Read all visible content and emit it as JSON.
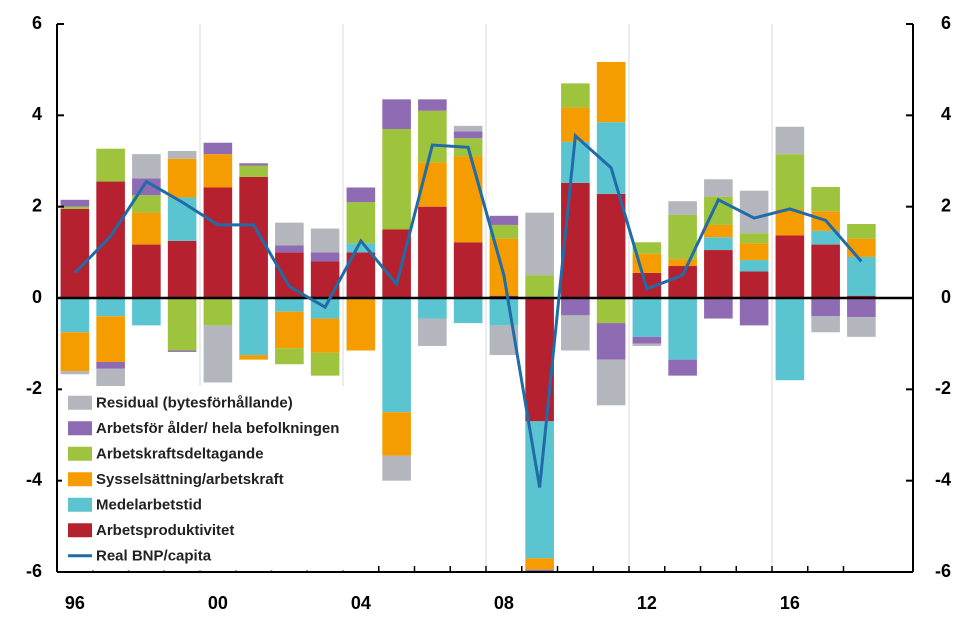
{
  "chart_data": {
    "type": "bar",
    "categories": [
      "96",
      null,
      null,
      null,
      "00",
      null,
      null,
      null,
      "04",
      null,
      null,
      null,
      "08",
      null,
      null,
      null,
      "12",
      null,
      null,
      null,
      "16",
      null,
      null
    ],
    "series": [
      {
        "name": "Arbetsproduktivitet",
        "color": "#b5212e",
        "values": [
          1.95,
          2.55,
          1.17,
          1.25,
          2.42,
          2.65,
          1.0,
          0.8,
          1.0,
          1.5,
          2.0,
          1.22,
          0.05,
          -2.7,
          2.52,
          2.28,
          0.55,
          0.7,
          1.05,
          0.58,
          1.37,
          1.17,
          0.05
        ]
      },
      {
        "name": "Medelarbetstid",
        "color": "#5bc4d1",
        "values": [
          -0.75,
          -0.4,
          -0.6,
          0.95,
          0,
          -1.25,
          -0.3,
          -0.45,
          0.2,
          -2.5,
          -0.45,
          -0.55,
          -0.6,
          -3.0,
          0.9,
          1.57,
          -0.85,
          -1.35,
          0.28,
          0.25,
          -1.8,
          0.3,
          0.85
        ]
      },
      {
        "name": "Sysselsättning/arbetskraft",
        "color": "#f59c00",
        "values": [
          -0.85,
          -1.0,
          0.7,
          0.85,
          0.73,
          -0.1,
          -0.8,
          -0.75,
          -1.15,
          -0.95,
          0.97,
          1.88,
          1.25,
          -0.25,
          0.75,
          1.32,
          0.42,
          0.15,
          0.27,
          0.37,
          0.58,
          0.43,
          0.4
        ]
      },
      {
        "name": "Arbetskraftsdeltagande",
        "color": "#9dc43c",
        "values": [
          0.05,
          0.72,
          0.38,
          -1.15,
          -0.6,
          0.25,
          -0.35,
          -0.5,
          0.9,
          2.2,
          1.13,
          0.4,
          0.3,
          0.5,
          0.53,
          -0.55,
          0.25,
          0.97,
          0.62,
          0.22,
          1.2,
          0.53,
          0.32
        ]
      },
      {
        "name": "Arbetsför ålder/ hela befolkningen",
        "color": "#8e6bb3",
        "values": [
          0.15,
          -0.15,
          0.37,
          -0.03,
          0.25,
          0.05,
          0.15,
          0.2,
          0.32,
          0.65,
          0.25,
          0.15,
          0.2,
          -0.1,
          -0.38,
          -0.8,
          -0.15,
          -0.35,
          -0.45,
          -0.6,
          0,
          -0.4,
          -0.42
        ]
      },
      {
        "name": "Residual (bytesförhållande)",
        "color": "#b3b6bd",
        "values": [
          -0.07,
          -0.4,
          0.53,
          0.17,
          -1.25,
          0,
          0.5,
          0.52,
          0,
          -0.55,
          -0.6,
          0.12,
          -0.65,
          1.37,
          -0.77,
          -1.0,
          -0.05,
          0.3,
          0.38,
          0.93,
          0.6,
          -0.35,
          -0.43
        ]
      },
      {
        "name": "Real BNP/capita",
        "color": "#1f6ca8",
        "type": "line",
        "values": [
          0.55,
          1.35,
          2.55,
          2.1,
          1.6,
          1.6,
          0.25,
          -0.2,
          1.25,
          0.3,
          3.35,
          3.3,
          0.5,
          -4.15,
          3.55,
          2.85,
          0.2,
          0.5,
          2.15,
          1.75,
          1.95,
          1.7,
          0.8
        ]
      }
    ],
    "ylim": [
      -6,
      6
    ],
    "yticks": [
      -6,
      -4,
      -2,
      0,
      2,
      4,
      6
    ],
    "y2lim": [
      -6,
      6
    ],
    "y2ticks": [
      -6,
      -4,
      -2,
      0,
      2,
      4,
      6
    ],
    "legend": "lower left"
  }
}
